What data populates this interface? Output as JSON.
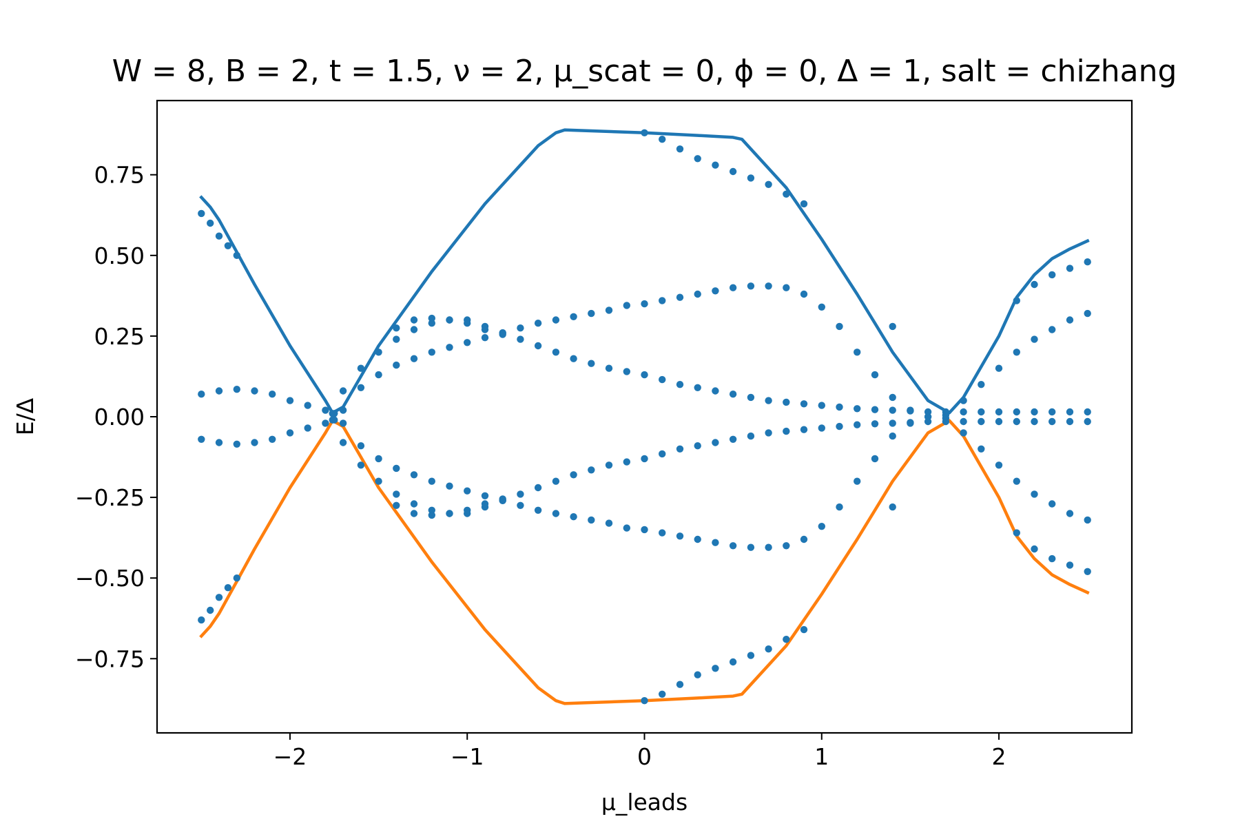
{
  "chart_data": {
    "type": "line",
    "title": "W = 8, B = 2, t = 1.5, ν = 2, μ_scat = 0, ϕ = 0, Δ = 1, salt = chizhang",
    "xlabel": "μ_leads",
    "ylabel": "E/Δ",
    "xlim": [
      -2.75,
      2.75
    ],
    "ylim": [
      -0.98,
      0.98
    ],
    "x_ticks": [
      -2,
      -1,
      0,
      1,
      2
    ],
    "x_tick_labels": [
      "−2",
      "−1",
      "0",
      "1",
      "2"
    ],
    "y_ticks": [
      -0.75,
      -0.5,
      -0.25,
      0.0,
      0.25,
      0.5,
      0.75
    ],
    "y_tick_labels": [
      "−0.75",
      "−0.50",
      "−0.25",
      "0.00",
      "0.25",
      "0.50",
      "0.75"
    ],
    "grid": false,
    "series": [
      {
        "kind": "line",
        "color": "#1f77b4",
        "x": [
          -2.5,
          -2.45,
          -2.4,
          -2.35,
          -2.3,
          -2.2,
          -2.0,
          -1.8,
          -1.76,
          -1.7,
          -1.5,
          -1.2,
          -0.9,
          -0.6,
          -0.5,
          -0.45,
          -0.3,
          0.0,
          0.3,
          0.5,
          0.55,
          0.8,
          1.0,
          1.2,
          1.4,
          1.6,
          1.72,
          1.8,
          2.0,
          2.1,
          2.2,
          2.3,
          2.4,
          2.5
        ],
        "y": [
          0.68,
          0.65,
          0.61,
          0.56,
          0.51,
          0.41,
          0.22,
          0.05,
          0.012,
          0.03,
          0.22,
          0.45,
          0.66,
          0.84,
          0.88,
          0.889,
          0.886,
          0.88,
          0.872,
          0.866,
          0.86,
          0.71,
          0.55,
          0.38,
          0.2,
          0.05,
          0.012,
          0.06,
          0.25,
          0.37,
          0.44,
          0.49,
          0.52,
          0.545
        ]
      },
      {
        "kind": "line",
        "color": "#ff7f0e",
        "x": [
          -2.5,
          -2.45,
          -2.4,
          -2.35,
          -2.3,
          -2.2,
          -2.0,
          -1.8,
          -1.76,
          -1.7,
          -1.5,
          -1.2,
          -0.9,
          -0.6,
          -0.5,
          -0.45,
          -0.3,
          0.0,
          0.3,
          0.5,
          0.55,
          0.8,
          1.0,
          1.2,
          1.4,
          1.6,
          1.72,
          1.8,
          2.0,
          2.1,
          2.2,
          2.3,
          2.4,
          2.5
        ],
        "y": [
          -0.68,
          -0.65,
          -0.61,
          -0.56,
          -0.51,
          -0.41,
          -0.22,
          -0.05,
          -0.012,
          -0.03,
          -0.22,
          -0.45,
          -0.66,
          -0.84,
          -0.88,
          -0.889,
          -0.886,
          -0.88,
          -0.872,
          -0.866,
          -0.86,
          -0.71,
          -0.55,
          -0.38,
          -0.2,
          -0.05,
          -0.012,
          -0.06,
          -0.25,
          -0.37,
          -0.44,
          -0.49,
          -0.52,
          -0.545
        ]
      },
      {
        "kind": "dots",
        "color": "#1f77b4",
        "x": [
          -2.5,
          -2.4,
          -2.3,
          -2.2,
          -2.1,
          -2.0,
          -1.9,
          -1.8,
          -1.76,
          -1.7,
          -1.6,
          -1.5,
          -1.4,
          -1.3,
          -1.2,
          -1.1,
          -1.0,
          -0.9,
          -0.8,
          -0.7,
          -0.6,
          -0.5,
          -0.4,
          -0.3,
          -0.2,
          -0.1,
          0.0,
          0.1,
          0.2,
          0.3,
          0.4,
          0.5,
          0.6,
          0.7,
          0.8,
          0.9,
          1.0,
          1.1,
          1.2,
          1.3,
          1.4,
          1.5,
          1.6,
          1.7,
          1.8,
          1.9,
          2.0,
          2.1,
          2.2,
          2.3,
          2.4,
          2.5
        ],
        "y": [
          0.07,
          0.08,
          0.085,
          0.08,
          0.07,
          0.05,
          0.035,
          0.02,
          0.01,
          -0.02,
          -0.09,
          -0.13,
          -0.16,
          -0.18,
          -0.2,
          -0.215,
          -0.23,
          -0.245,
          -0.26,
          -0.275,
          -0.29,
          -0.3,
          -0.31,
          -0.32,
          -0.33,
          -0.345,
          -0.35,
          -0.36,
          -0.37,
          -0.38,
          -0.39,
          -0.4,
          -0.405,
          -0.405,
          -0.4,
          -0.38,
          -0.34,
          -0.28,
          -0.2,
          -0.13,
          -0.06,
          -0.02,
          0.0,
          0.005,
          -0.05,
          -0.1,
          -0.15,
          -0.2,
          -0.24,
          -0.27,
          -0.3,
          -0.32
        ]
      },
      {
        "kind": "dots",
        "color": "#1f77b4",
        "x": [
          -2.5,
          -2.4,
          -2.3,
          -2.2,
          -2.1,
          -2.0,
          -1.9,
          -1.8,
          -1.76,
          -1.7,
          -1.6,
          -1.5,
          -1.4,
          -1.3,
          -1.2,
          -1.1,
          -1.0,
          -0.9,
          -0.8,
          -0.7,
          -0.6,
          -0.5,
          -0.4,
          -0.3,
          -0.2,
          -0.1,
          0.0,
          0.1,
          0.2,
          0.3,
          0.4,
          0.5,
          0.6,
          0.7,
          0.8,
          0.9,
          1.0,
          1.1,
          1.2,
          1.3,
          1.4,
          1.5,
          1.6,
          1.7,
          1.8,
          1.9,
          2.0,
          2.1,
          2.2,
          2.3,
          2.4,
          2.5
        ],
        "y": [
          -0.07,
          -0.08,
          -0.085,
          -0.08,
          -0.07,
          -0.05,
          -0.035,
          -0.02,
          -0.01,
          0.02,
          0.09,
          0.13,
          0.16,
          0.18,
          0.2,
          0.215,
          0.23,
          0.245,
          0.26,
          0.275,
          0.29,
          0.3,
          0.31,
          0.32,
          0.33,
          0.345,
          0.35,
          0.36,
          0.37,
          0.38,
          0.39,
          0.4,
          0.405,
          0.405,
          0.4,
          0.38,
          0.34,
          0.28,
          0.2,
          0.13,
          0.06,
          0.02,
          0.0,
          -0.005,
          0.05,
          0.1,
          0.15,
          0.2,
          0.24,
          0.27,
          0.3,
          0.32
        ]
      },
      {
        "kind": "dots",
        "color": "#1f77b4",
        "x": [
          -2.5,
          -2.45,
          -2.4,
          -2.35,
          -2.3,
          -1.75,
          -1.7,
          -1.6,
          -1.5,
          -1.4,
          -1.3,
          -1.2,
          -1.1,
          -1.0,
          -0.9,
          -0.8,
          -0.7,
          -0.6,
          -0.5,
          -0.4,
          -0.3,
          -0.2,
          -0.1,
          0.0,
          0.1,
          0.2,
          0.3,
          0.4,
          0.5,
          0.6,
          0.7,
          0.8,
          0.9,
          1.0,
          1.1,
          1.2,
          1.3,
          1.4,
          1.5,
          1.6,
          1.7,
          1.8,
          1.9,
          2.0,
          2.1,
          2.2,
          2.3,
          2.4,
          2.5
        ],
        "y": [
          0.63,
          0.6,
          0.56,
          0.53,
          0.5,
          -0.01,
          -0.08,
          -0.15,
          -0.2,
          -0.24,
          -0.27,
          -0.29,
          -0.3,
          -0.3,
          -0.28,
          -0.26,
          -0.24,
          -0.22,
          -0.2,
          -0.18,
          -0.165,
          -0.15,
          -0.14,
          -0.13,
          -0.115,
          -0.1,
          -0.09,
          -0.08,
          -0.07,
          -0.06,
          -0.05,
          -0.045,
          -0.04,
          -0.035,
          -0.03,
          -0.025,
          -0.022,
          -0.02,
          -0.018,
          -0.015,
          -0.015,
          -0.015,
          -0.015,
          -0.015,
          -0.015,
          -0.015,
          -0.015,
          -0.015,
          -0.015
        ]
      },
      {
        "kind": "dots",
        "color": "#1f77b4",
        "x": [
          -2.5,
          -2.45,
          -2.4,
          -2.35,
          -2.3,
          -1.75,
          -1.7,
          -1.6,
          -1.5,
          -1.4,
          -1.3,
          -1.2,
          -1.1,
          -1.0,
          -0.9,
          -0.8,
          -0.7,
          -0.6,
          -0.5,
          -0.4,
          -0.3,
          -0.2,
          -0.1,
          0.0,
          0.1,
          0.2,
          0.3,
          0.4,
          0.5,
          0.6,
          0.7,
          0.8,
          0.9,
          1.0,
          1.1,
          1.2,
          1.3,
          1.4,
          1.5,
          1.6,
          1.7,
          1.8,
          1.9,
          2.0,
          2.1,
          2.2,
          2.3,
          2.4,
          2.5
        ],
        "y": [
          -0.63,
          -0.6,
          -0.56,
          -0.53,
          -0.5,
          0.01,
          0.08,
          0.15,
          0.2,
          0.24,
          0.27,
          0.29,
          0.3,
          0.3,
          0.28,
          0.26,
          0.24,
          0.22,
          0.2,
          0.18,
          0.165,
          0.15,
          0.14,
          0.13,
          0.115,
          0.1,
          0.09,
          0.08,
          0.07,
          0.06,
          0.05,
          0.045,
          0.04,
          0.035,
          0.03,
          0.025,
          0.022,
          0.02,
          0.018,
          0.015,
          0.015,
          0.015,
          0.015,
          0.015,
          0.015,
          0.015,
          0.015,
          0.015,
          0.015
        ]
      },
      {
        "kind": "dots",
        "color": "#1f77b4",
        "x": [
          -1.4,
          -1.3,
          -1.2,
          -1.1,
          -1.0,
          -0.9,
          -0.8,
          0.0,
          0.1,
          0.2,
          0.3,
          0.4,
          0.5,
          0.6,
          0.7,
          0.8,
          0.9,
          1.4,
          2.1,
          2.2,
          2.3,
          2.4,
          2.5
        ],
        "y": [
          0.275,
          0.3,
          0.305,
          0.3,
          0.29,
          0.27,
          0.255,
          0.88,
          0.86,
          0.83,
          0.8,
          0.78,
          0.76,
          0.74,
          0.72,
          0.69,
          0.66,
          0.28,
          0.36,
          0.41,
          0.44,
          0.46,
          0.48
        ]
      },
      {
        "kind": "dots",
        "color": "#1f77b4",
        "x": [
          -1.4,
          -1.3,
          -1.2,
          -1.1,
          -1.0,
          -0.9,
          -0.8,
          0.0,
          0.1,
          0.2,
          0.3,
          0.4,
          0.5,
          0.6,
          0.7,
          0.8,
          0.9,
          1.4,
          2.1,
          2.2,
          2.3,
          2.4,
          2.5
        ],
        "y": [
          -0.275,
          -0.3,
          -0.305,
          -0.3,
          -0.29,
          -0.27,
          -0.255,
          -0.88,
          -0.86,
          -0.83,
          -0.8,
          -0.78,
          -0.76,
          -0.74,
          -0.72,
          -0.69,
          -0.66,
          -0.28,
          -0.36,
          -0.41,
          -0.44,
          -0.46,
          -0.48
        ]
      }
    ]
  }
}
